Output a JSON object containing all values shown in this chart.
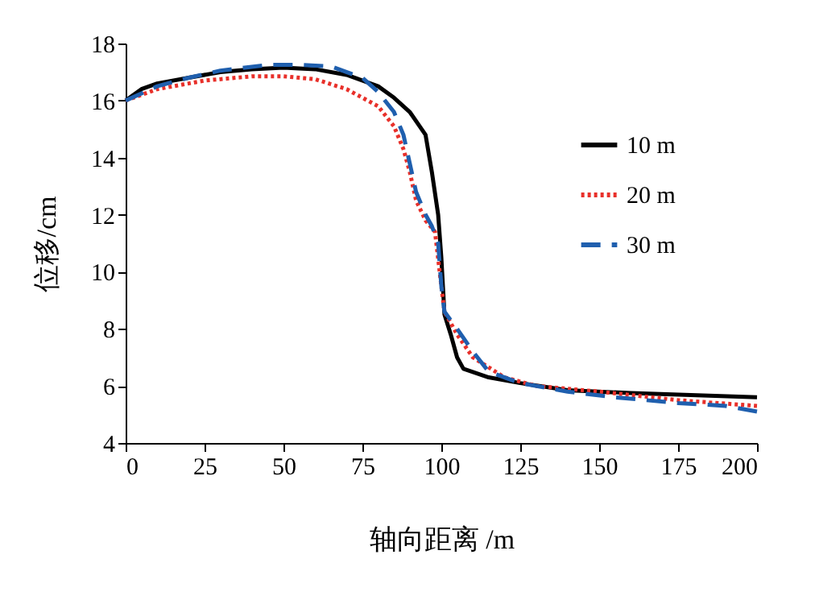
{
  "chart_data": {
    "type": "line",
    "xlabel": "轴向距离 /m",
    "ylabel": "位移/cm",
    "xlim": [
      0,
      200
    ],
    "ylim": [
      4,
      18
    ],
    "xticks": [
      0,
      25,
      50,
      75,
      100,
      125,
      150,
      175,
      200
    ],
    "yticks": [
      4,
      6,
      8,
      10,
      12,
      14,
      16,
      18
    ],
    "grid": false,
    "legend": "top right",
    "series": [
      {
        "name": "10 m",
        "color": "#000000",
        "line_style": "solid",
        "x": [
          0,
          5,
          10,
          20,
          30,
          40,
          50,
          60,
          70,
          80,
          85,
          90,
          95,
          97,
          99,
          100,
          101,
          103,
          105,
          107,
          115,
          125,
          140,
          160,
          200
        ],
        "values": [
          16.0,
          16.4,
          16.6,
          16.8,
          17.0,
          17.1,
          17.15,
          17.1,
          16.9,
          16.5,
          16.1,
          15.6,
          14.8,
          13.5,
          12.0,
          10.5,
          8.5,
          7.8,
          7.0,
          6.6,
          6.3,
          6.1,
          5.85,
          5.75,
          5.6
        ]
      },
      {
        "name": "20 m",
        "color": "#e8302a",
        "line_style": "dotted",
        "x": [
          0,
          10,
          25,
          40,
          50,
          60,
          70,
          80,
          85,
          88,
          90,
          92,
          95,
          98,
          100,
          101,
          105,
          110,
          120,
          130,
          150,
          175,
          200
        ],
        "values": [
          16.0,
          16.4,
          16.7,
          16.85,
          16.85,
          16.75,
          16.4,
          15.8,
          15.1,
          14.3,
          13.5,
          12.5,
          11.8,
          11.4,
          9.5,
          8.6,
          7.8,
          7.0,
          6.3,
          6.0,
          5.8,
          5.5,
          5.3
        ]
      },
      {
        "name": "30 m",
        "color": "#1f5fae",
        "line_style": "dashed",
        "x": [
          0,
          10,
          20,
          30,
          45,
          55,
          65,
          75,
          80,
          85,
          88,
          90,
          92,
          95,
          97,
          99,
          100,
          101,
          105,
          110,
          115,
          125,
          140,
          155,
          175,
          190,
          200
        ],
        "values": [
          16.0,
          16.5,
          16.8,
          17.05,
          17.25,
          17.25,
          17.2,
          16.8,
          16.3,
          15.6,
          14.8,
          13.8,
          12.8,
          12.0,
          11.6,
          11.0,
          9.5,
          8.6,
          8.0,
          7.2,
          6.5,
          6.1,
          5.8,
          5.6,
          5.4,
          5.3,
          5.1
        ]
      }
    ]
  }
}
